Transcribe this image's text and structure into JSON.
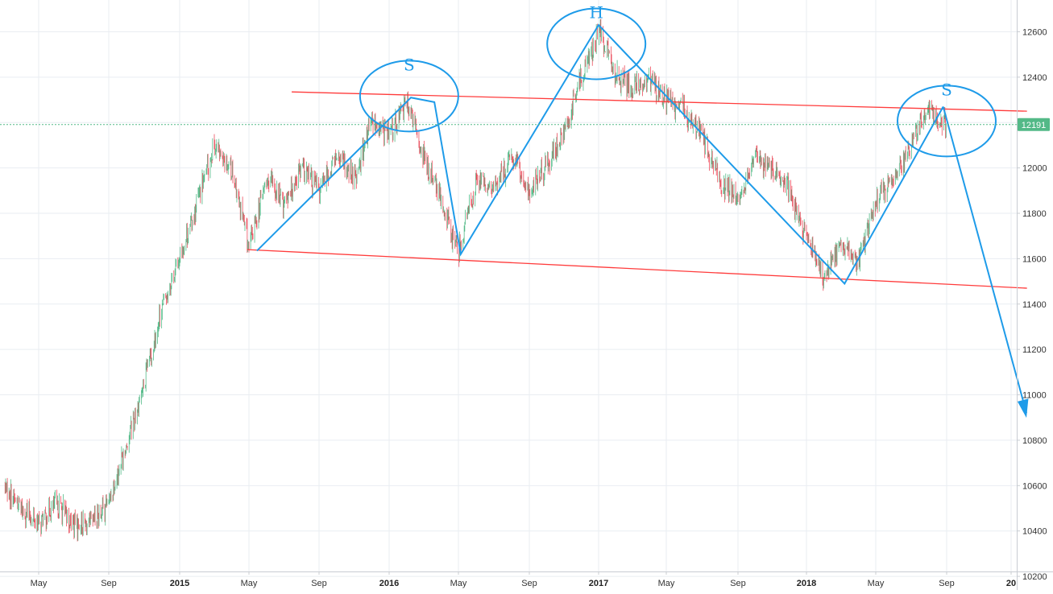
{
  "chart_data": {
    "type": "candlestick",
    "x_axis": {
      "tick_labels": [
        "May",
        "Sep",
        "2015",
        "May",
        "Sep",
        "2016",
        "May",
        "Sep",
        "2017",
        "May",
        "Sep",
        "2018",
        "May",
        "Sep",
        "20"
      ],
      "bold_labels": [
        "2015",
        "2016",
        "2017",
        "2018",
        "20"
      ]
    },
    "y_axis": {
      "position": "right",
      "range": [
        10140,
        12740
      ],
      "ticks": [
        10200,
        10400,
        10600,
        10800,
        11000,
        11200,
        11400,
        11600,
        11800,
        12000,
        12200,
        12400,
        12600
      ],
      "tick_labels": [
        "10200",
        "10400",
        "10600",
        "10800",
        "11000",
        "11200",
        "11400",
        "11600",
        "11800",
        "12000",
        "12200",
        "12400",
        "12600"
      ]
    },
    "grid": true,
    "last_price": {
      "value": 12191,
      "label": "12191",
      "color": "#53b987"
    },
    "candle_colors": {
      "up": "#53b987",
      "down": "#eb4d5c"
    },
    "price_path": [
      {
        "t": "2014-03-01",
        "v": 10600
      },
      {
        "t": "2014-04-01",
        "v": 10500
      },
      {
        "t": "2014-05-01",
        "v": 10430
      },
      {
        "t": "2014-06-01",
        "v": 10520
      },
      {
        "t": "2014-07-01",
        "v": 10430
      },
      {
        "t": "2014-08-01",
        "v": 10430
      },
      {
        "t": "2014-09-01",
        "v": 10530
      },
      {
        "t": "2014-10-01",
        "v": 10780
      },
      {
        "t": "2014-11-01",
        "v": 11050
      },
      {
        "t": "2014-12-01",
        "v": 11380
      },
      {
        "t": "2015-01-01",
        "v": 11600
      },
      {
        "t": "2015-02-01",
        "v": 11850
      },
      {
        "t": "2015-03-01",
        "v": 12100
      },
      {
        "t": "2015-04-01",
        "v": 12000
      },
      {
        "t": "2015-05-01",
        "v": 11650
      },
      {
        "t": "2015-06-01",
        "v": 11950
      },
      {
        "t": "2015-07-01",
        "v": 11850
      },
      {
        "t": "2015-08-01",
        "v": 12000
      },
      {
        "t": "2015-09-01",
        "v": 11900
      },
      {
        "t": "2015-10-01",
        "v": 12050
      },
      {
        "t": "2015-11-01",
        "v": 11950
      },
      {
        "t": "2015-12-01",
        "v": 12200
      },
      {
        "t": "2016-01-01",
        "v": 12150
      },
      {
        "t": "2016-02-01",
        "v": 12300
      },
      {
        "t": "2016-03-01",
        "v": 12050
      },
      {
        "t": "2016-04-01",
        "v": 11850
      },
      {
        "t": "2016-05-01",
        "v": 11630
      },
      {
        "t": "2016-06-01",
        "v": 11950
      },
      {
        "t": "2016-07-01",
        "v": 11900
      },
      {
        "t": "2016-08-01",
        "v": 12050
      },
      {
        "t": "2016-09-01",
        "v": 11900
      },
      {
        "t": "2016-10-01",
        "v": 12000
      },
      {
        "t": "2016-11-01",
        "v": 12150
      },
      {
        "t": "2016-12-01",
        "v": 12400
      },
      {
        "t": "2017-01-01",
        "v": 12600
      },
      {
        "t": "2017-02-01",
        "v": 12400
      },
      {
        "t": "2017-03-01",
        "v": 12350
      },
      {
        "t": "2017-04-01",
        "v": 12400
      },
      {
        "t": "2017-05-01",
        "v": 12300
      },
      {
        "t": "2017-06-01",
        "v": 12250
      },
      {
        "t": "2017-07-01",
        "v": 12150
      },
      {
        "t": "2017-08-01",
        "v": 11950
      },
      {
        "t": "2017-09-01",
        "v": 11850
      },
      {
        "t": "2017-10-01",
        "v": 12050
      },
      {
        "t": "2017-11-01",
        "v": 12000
      },
      {
        "t": "2017-12-01",
        "v": 11900
      },
      {
        "t": "2018-01-01",
        "v": 11700
      },
      {
        "t": "2018-02-01",
        "v": 11520
      },
      {
        "t": "2018-03-01",
        "v": 11650
      },
      {
        "t": "2018-04-01",
        "v": 11600
      },
      {
        "t": "2018-05-01",
        "v": 11850
      },
      {
        "t": "2018-06-01",
        "v": 11950
      },
      {
        "t": "2018-07-01",
        "v": 12100
      },
      {
        "t": "2018-08-01",
        "v": 12250
      },
      {
        "t": "2018-09-01",
        "v": 12191
      }
    ],
    "drawings": {
      "channel_lines": [
        {
          "from": {
            "t": "2015-07-15",
            "v": 12335
          },
          "to": {
            "t": "2019-01-31",
            "v": 12250
          },
          "color": "#ff3b3b"
        },
        {
          "from": {
            "t": "2015-04-28",
            "v": 11640
          },
          "to": {
            "t": "2019-01-31",
            "v": 11470
          },
          "color": "#ff3b3b"
        }
      ],
      "pattern_path": [
        {
          "t": "2015-05-15",
          "v": 11635
        },
        {
          "t": "2016-02-08",
          "v": 12310
        },
        {
          "t": "2016-03-20",
          "v": 12290
        },
        {
          "t": "2016-05-05",
          "v": 11620
        },
        {
          "t": "2017-01-01",
          "v": 12630
        },
        {
          "t": "2018-03-08",
          "v": 11490
        },
        {
          "t": "2018-08-26",
          "v": 12270
        }
      ],
      "projection_arrow": {
        "from": {
          "t": "2018-08-26",
          "v": 12270
        },
        "to": {
          "t": "2019-01-30",
          "v": 10920
        }
      },
      "pattern_color": "#1e9be9",
      "shoulder_head_labels": [
        {
          "text": "S",
          "t": "2016-02-05",
          "v": 12430
        },
        {
          "text": "H",
          "t": "2016-12-28",
          "v": 12660
        },
        {
          "text": "S",
          "t": "2018-09-01",
          "v": 12320
        }
      ]
    }
  }
}
